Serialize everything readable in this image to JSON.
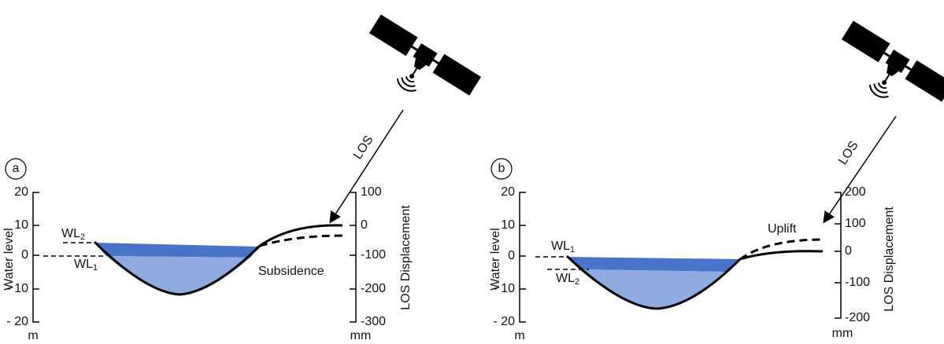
{
  "panels": [
    {
      "label": "a",
      "left_axis_title": "Water level",
      "left_unit": "m",
      "left_ticks": [
        "20",
        "10",
        "0",
        "- 10",
        "- 20"
      ],
      "right_axis_title": "LOS Displacement",
      "right_unit": "mm",
      "right_ticks": [
        "100",
        "0",
        "-100",
        "-200",
        "-300"
      ],
      "wl_upper": {
        "text": "WL",
        "sub": "2"
      },
      "wl_lower": {
        "text": "WL",
        "sub": "1"
      },
      "los": "LOS",
      "annotation": "Subsidence"
    },
    {
      "label": "b",
      "left_axis_title": "Water level",
      "left_unit": "m",
      "left_ticks": [
        "20",
        "10",
        "0",
        "- 10",
        "- 20"
      ],
      "right_axis_title": "LOS Displacement",
      "right_unit": "mm",
      "right_ticks": [
        "200",
        "100",
        "0",
        "-100",
        "-200"
      ],
      "wl_upper": {
        "text": "WL",
        "sub": "1"
      },
      "wl_lower": {
        "text": "WL",
        "sub": "2"
      },
      "los": "LOS",
      "annotation": "Uplift"
    }
  ]
}
